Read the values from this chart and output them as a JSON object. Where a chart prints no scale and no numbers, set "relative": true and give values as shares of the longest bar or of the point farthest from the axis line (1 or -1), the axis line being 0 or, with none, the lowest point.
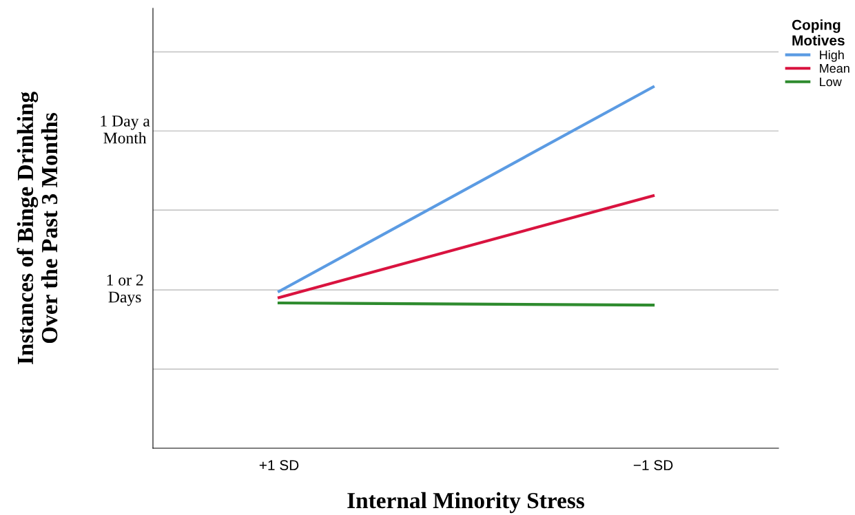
{
  "chart_data": {
    "type": "line",
    "relative": true,
    "xlabel": "Internal Minority Stress",
    "ylabel": "Instances of Binge Drinking\nOver the Past 3 Months",
    "legend_title": "Coping\nMotives",
    "categories": [
      "+1 SD",
      "−1 SD"
    ],
    "series": [
      {
        "name": "High",
        "color": "#5b9be3",
        "values": [
          0.434,
          1
        ]
      },
      {
        "name": "Mean",
        "color": "#d9133f",
        "values": [
          0.417,
          0.699
        ]
      },
      {
        "name": "Low",
        "color": "#2e8b2e",
        "values": [
          0.402,
          0.396
        ]
      }
    ],
    "ref_lines": [
      {
        "axis": "y",
        "value": 0.219,
        "label": null,
        "color": "#c8c8c8"
      },
      {
        "axis": "y",
        "value": 0.438,
        "label": "1 or 2\nDays",
        "color": "#c8c8c8"
      },
      {
        "axis": "y",
        "value": 0.659,
        "label": null,
        "color": "#c8c8c8"
      },
      {
        "axis": "y",
        "value": 0.878,
        "label": "1 Day a\nMonth",
        "color": "#c8c8c8"
      },
      {
        "axis": "y",
        "value": 1.097,
        "label": null,
        "color": "#c8c8c8"
      }
    ],
    "legend": "top right",
    "marker": "none",
    "line_style": "solid"
  }
}
